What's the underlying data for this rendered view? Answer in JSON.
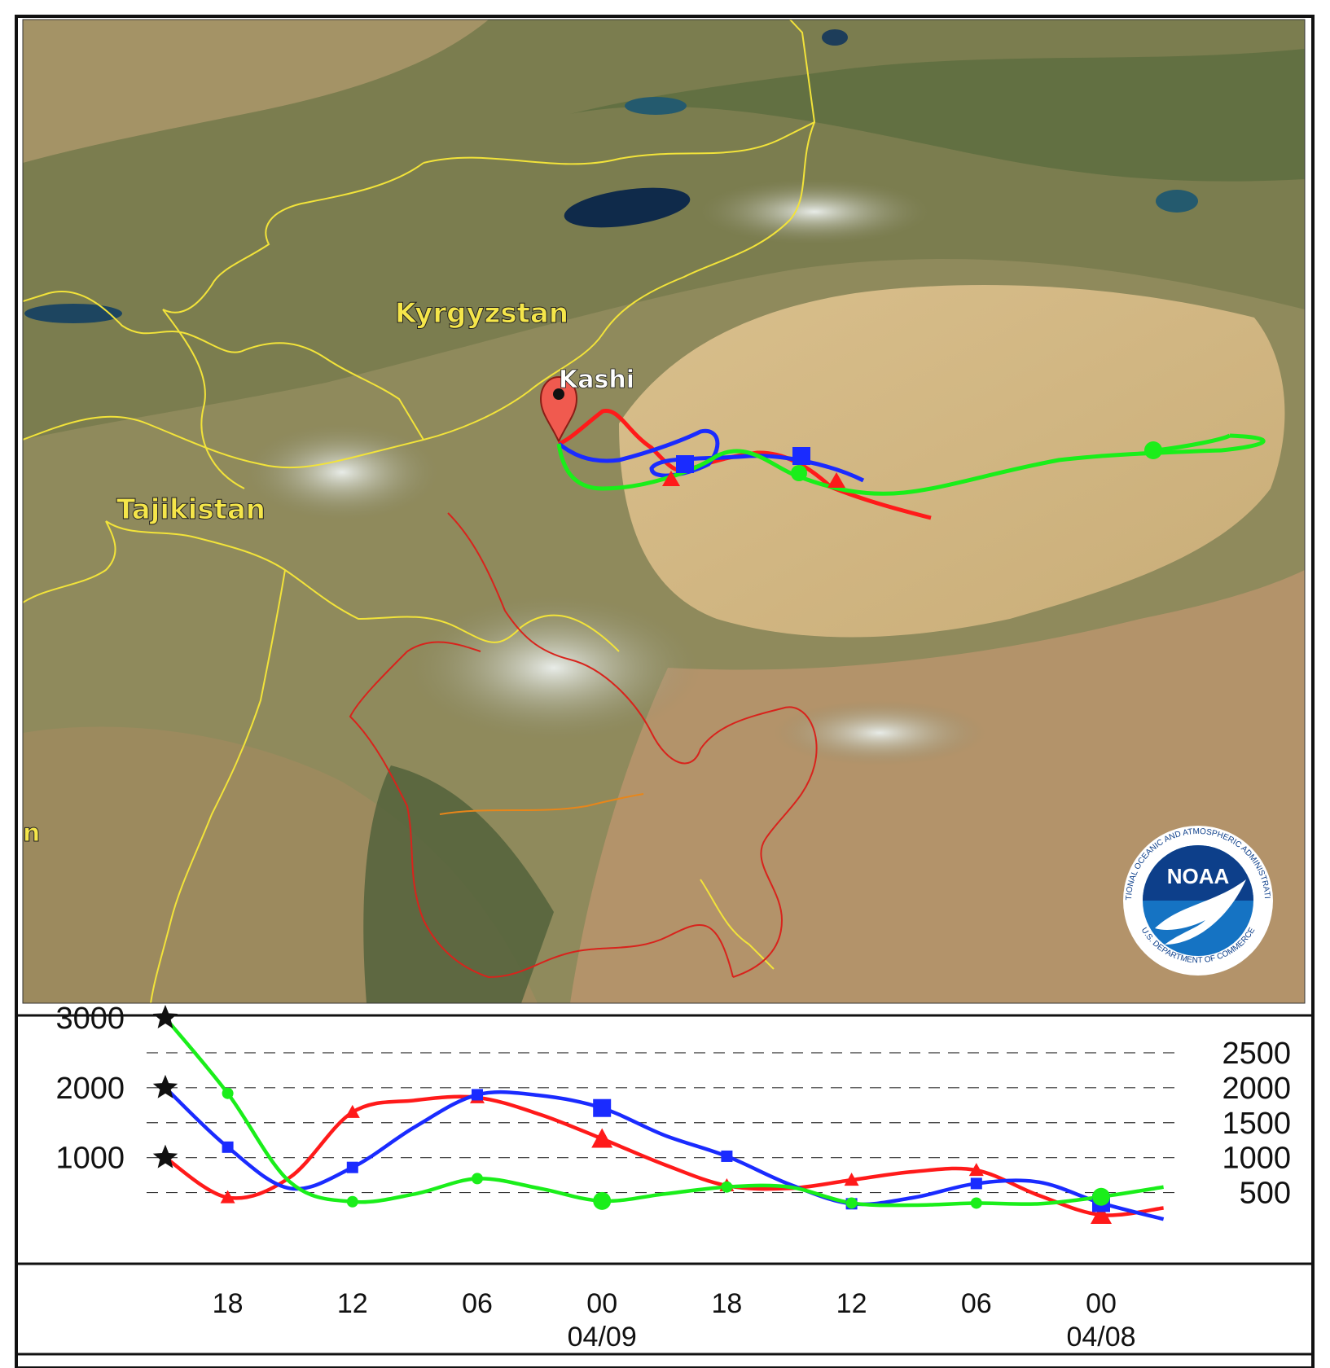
{
  "map": {
    "labels": {
      "kyrgyzstan": "Kyrgyzstan",
      "tajikistan": "Tajikistan",
      "kashi": "Kashi",
      "clipped_edge": "n"
    },
    "colors": {
      "country_border": "#f2e33a",
      "region_border": "#d8231c",
      "region_border_alt": "#e8861a",
      "label_text": "#f5e64a"
    }
  },
  "logo": {
    "acronym": "NOAA",
    "ring_text_top": "NATIONAL OCEANIC AND ATMOSPHERIC ADMINISTRATION",
    "ring_text_bottom": "U.S. DEPARTMENT OF COMMERCE"
  },
  "chart_data": {
    "type": "line",
    "title": "",
    "xlabel": "",
    "ylabel": "",
    "x": [
      "",
      "18",
      "",
      "12",
      "",
      "06",
      "",
      "00",
      "",
      "18",
      "",
      "12",
      "",
      "06",
      "",
      "00",
      ""
    ],
    "date_labels": [
      {
        "after_tick": "00",
        "index": 7,
        "text": "04/09"
      },
      {
        "after_tick": "00",
        "index": 15,
        "text": "04/08"
      }
    ],
    "ylim": [
      0,
      3000
    ],
    "left_ticks": [
      "3000",
      "2000",
      "1000"
    ],
    "right_ticks": [
      "2500",
      "2000",
      "1500",
      "1000",
      "500"
    ],
    "gridlines_dashed": [
      500,
      1000,
      1500,
      2000,
      2500
    ],
    "start_marker": "star",
    "series": [
      {
        "color": "#ff1a1a",
        "marker": "triangle",
        "values": [
          1000,
          430,
          720,
          1650,
          1820,
          1860,
          1620,
          1270,
          900,
          600,
          560,
          680,
          800,
          820,
          460,
          180,
          280
        ],
        "start_height": 1000
      },
      {
        "color": "#1a2bff",
        "marker": "square",
        "values": [
          2000,
          1150,
          560,
          860,
          1440,
          1900,
          1890,
          1710,
          1320,
          1020,
          620,
          340,
          430,
          630,
          650,
          350,
          120
        ],
        "start_height": 2000
      },
      {
        "color": "#1aee1a",
        "marker": "circle",
        "values": [
          3000,
          1920,
          650,
          370,
          480,
          700,
          560,
          380,
          480,
          580,
          580,
          350,
          320,
          350,
          340,
          440,
          580
        ],
        "start_height": 3000
      }
    ]
  },
  "trajectories": {
    "colors": {
      "red": "#ff1a1a",
      "blue": "#1a2bff",
      "green": "#1aee1a"
    }
  }
}
